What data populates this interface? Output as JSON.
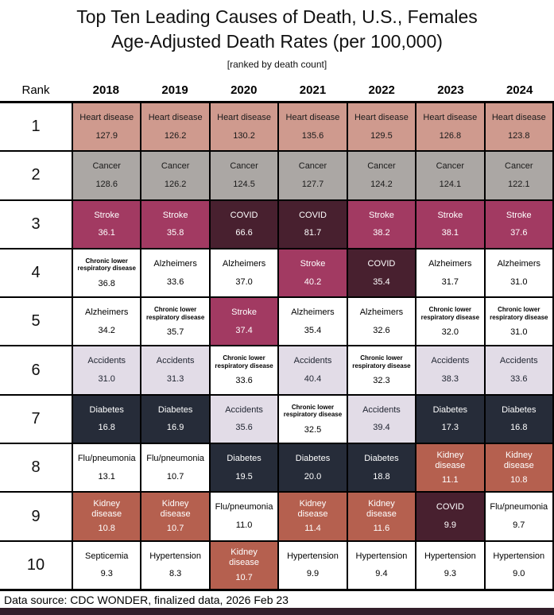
{
  "title_line1": "Top Ten Leading Causes of Death, U.S., Females",
  "title_line2": "Age-Adjusted Death Rates (per 100,000)",
  "subtitle": "[ranked by death count]",
  "rank_header": "Rank",
  "years": [
    "2018",
    "2019",
    "2020",
    "2021",
    "2022",
    "2023",
    "2024"
  ],
  "footer_text": "Data source: CDC WONDER, finalized data, 2026 Feb 23",
  "bottom_bar_color": "#331f2a",
  "categories": {
    "heart": {
      "label": "Heart disease",
      "bg": "#cf9a8e",
      "fg": "#1a1a1a"
    },
    "cancer": {
      "label": "Cancer",
      "bg": "#aba7a4",
      "fg": "#1a1a1a"
    },
    "stroke": {
      "label": "Stroke",
      "bg": "#a23a62",
      "fg": "#ffffff"
    },
    "covid": {
      "label": "COVID",
      "bg": "#48202f",
      "fg": "#ffffff"
    },
    "clrd": {
      "label": "Chronic lower respiratory disease",
      "bg": "#ffffff",
      "fg": "#000000"
    },
    "alzheimers": {
      "label": "Alzheimers",
      "bg": "#ffffff",
      "fg": "#000000"
    },
    "accidents": {
      "label": "Accidents",
      "bg": "#e2dce7",
      "fg": "#1f2430"
    },
    "diabetes": {
      "label": "Diabetes",
      "bg": "#262c39",
      "fg": "#ffffff"
    },
    "flu": {
      "label": "Flu/pneumonia",
      "bg": "#ffffff",
      "fg": "#000000"
    },
    "kidney": {
      "label": "Kidney disease",
      "bg": "#b5604f",
      "fg": "#ffffff"
    },
    "septicemia": {
      "label": "Septicemia",
      "bg": "#ffffff",
      "fg": "#000000"
    },
    "hypertension": {
      "label": "Hypertension",
      "bg": "#ffffff",
      "fg": "#000000"
    }
  },
  "chart_data": {
    "type": "table",
    "title": "Top Ten Leading Causes of Death, U.S., Females — Age-Adjusted Death Rates (per 100,000), ranked by death count",
    "columns": [
      "Rank",
      "2018",
      "2019",
      "2020",
      "2021",
      "2022",
      "2023",
      "2024"
    ],
    "rows": [
      {
        "rank": "1",
        "cells": [
          [
            "heart",
            "127.9"
          ],
          [
            "heart",
            "126.2"
          ],
          [
            "heart",
            "130.2"
          ],
          [
            "heart",
            "135.6"
          ],
          [
            "heart",
            "129.5"
          ],
          [
            "heart",
            "126.8"
          ],
          [
            "heart",
            "123.8"
          ]
        ]
      },
      {
        "rank": "2",
        "cells": [
          [
            "cancer",
            "128.6"
          ],
          [
            "cancer",
            "126.2"
          ],
          [
            "cancer",
            "124.5"
          ],
          [
            "cancer",
            "127.7"
          ],
          [
            "cancer",
            "124.2"
          ],
          [
            "cancer",
            "124.1"
          ],
          [
            "cancer",
            "122.1"
          ]
        ]
      },
      {
        "rank": "3",
        "cells": [
          [
            "stroke",
            "36.1"
          ],
          [
            "stroke",
            "35.8"
          ],
          [
            "covid",
            "66.6"
          ],
          [
            "covid",
            "81.7"
          ],
          [
            "stroke",
            "38.2"
          ],
          [
            "stroke",
            "38.1"
          ],
          [
            "stroke",
            "37.6"
          ]
        ]
      },
      {
        "rank": "4",
        "cells": [
          [
            "clrd",
            "36.8"
          ],
          [
            "alzheimers",
            "33.6"
          ],
          [
            "alzheimers",
            "37.0"
          ],
          [
            "stroke",
            "40.2"
          ],
          [
            "covid",
            "35.4"
          ],
          [
            "alzheimers",
            "31.7"
          ],
          [
            "alzheimers",
            "31.0"
          ]
        ]
      },
      {
        "rank": "5",
        "cells": [
          [
            "alzheimers",
            "34.2"
          ],
          [
            "clrd",
            "35.7"
          ],
          [
            "stroke",
            "37.4"
          ],
          [
            "alzheimers",
            "35.4"
          ],
          [
            "alzheimers",
            "32.6"
          ],
          [
            "clrd",
            "32.0"
          ],
          [
            "clrd",
            "31.0"
          ]
        ]
      },
      {
        "rank": "6",
        "cells": [
          [
            "accidents",
            "31.0"
          ],
          [
            "accidents",
            "31.3"
          ],
          [
            "clrd",
            "33.6"
          ],
          [
            "accidents",
            "40.4"
          ],
          [
            "clrd",
            "32.3"
          ],
          [
            "accidents",
            "38.3"
          ],
          [
            "accidents",
            "33.6"
          ]
        ]
      },
      {
        "rank": "7",
        "cells": [
          [
            "diabetes",
            "16.8"
          ],
          [
            "diabetes",
            "16.9"
          ],
          [
            "accidents",
            "35.6"
          ],
          [
            "clrd",
            "32.5"
          ],
          [
            "accidents",
            "39.4"
          ],
          [
            "diabetes",
            "17.3"
          ],
          [
            "diabetes",
            "16.8"
          ]
        ]
      },
      {
        "rank": "8",
        "cells": [
          [
            "flu",
            "13.1"
          ],
          [
            "flu",
            "10.7"
          ],
          [
            "diabetes",
            "19.5"
          ],
          [
            "diabetes",
            "20.0"
          ],
          [
            "diabetes",
            "18.8"
          ],
          [
            "kidney",
            "11.1"
          ],
          [
            "kidney",
            "10.8"
          ]
        ]
      },
      {
        "rank": "9",
        "cells": [
          [
            "kidney",
            "10.8"
          ],
          [
            "kidney",
            "10.7"
          ],
          [
            "flu",
            "11.0"
          ],
          [
            "kidney",
            "11.4"
          ],
          [
            "kidney",
            "11.6"
          ],
          [
            "covid",
            "9.9"
          ],
          [
            "flu",
            "9.7"
          ]
        ]
      },
      {
        "rank": "10",
        "cells": [
          [
            "septicemia",
            "9.3"
          ],
          [
            "hypertension",
            "8.3"
          ],
          [
            "kidney",
            "10.7"
          ],
          [
            "hypertension",
            "9.9"
          ],
          [
            "hypertension",
            "9.4"
          ],
          [
            "hypertension",
            "9.3"
          ],
          [
            "hypertension",
            "9.0"
          ]
        ]
      }
    ]
  }
}
